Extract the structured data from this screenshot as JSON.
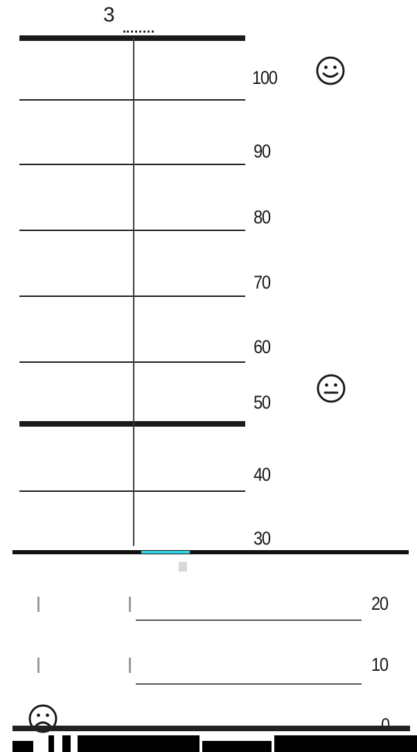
{
  "page": {
    "number": "3"
  },
  "scale": {
    "labels": [
      "100",
      "90",
      "80",
      "70",
      "60",
      "50",
      "40",
      "30",
      "20",
      "10",
      "0"
    ]
  },
  "faces": {
    "top": "smiley-icon",
    "middle": "neutral-face-icon",
    "bottom": "sad-face-icon"
  }
}
